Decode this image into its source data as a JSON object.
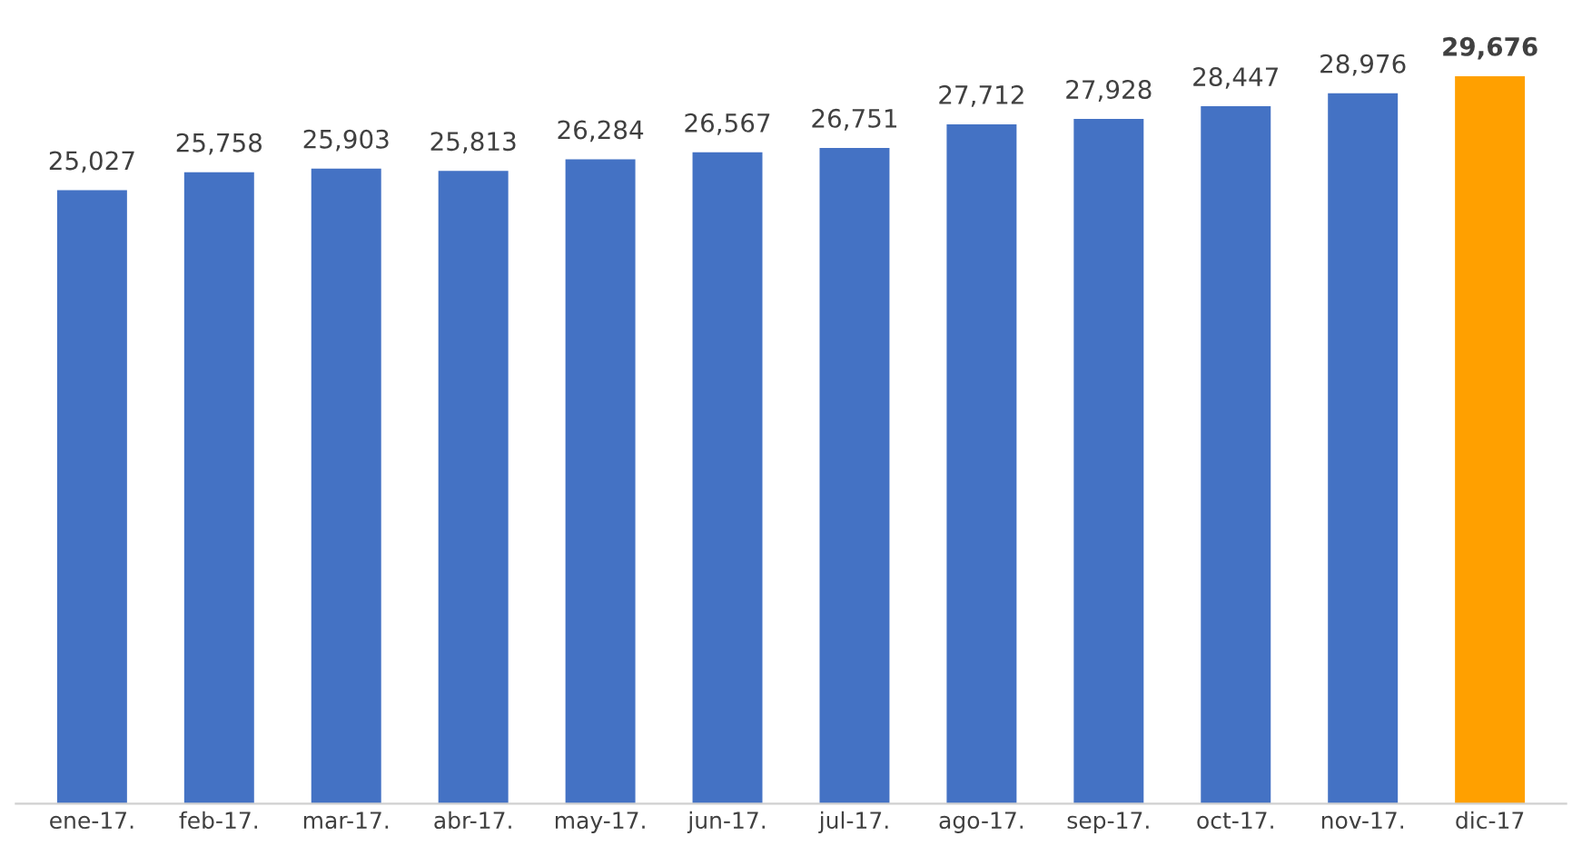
{
  "chart_data": {
    "type": "bar",
    "categories": [
      "ene-17.",
      "feb-17.",
      "mar-17.",
      "abr-17.",
      "may-17.",
      "jun-17.",
      "jul-17.",
      "ago-17.",
      "sep-17.",
      "oct-17.",
      "nov-17.",
      "dic-17"
    ],
    "values": [
      25027,
      25758,
      25903,
      25813,
      26284,
      26567,
      26751,
      27712,
      27928,
      28447,
      28976,
      29676
    ],
    "value_labels": [
      "25,027",
      "25,758",
      "25,903",
      "25,813",
      "26,284",
      "26,567",
      "26,751",
      "27,712",
      "27,928",
      "28,447",
      "28,976",
      "29,676"
    ],
    "colors": [
      "#4472c4",
      "#4472c4",
      "#4472c4",
      "#4472c4",
      "#4472c4",
      "#4472c4",
      "#4472c4",
      "#4472c4",
      "#4472c4",
      "#4472c4",
      "#4472c4",
      "#ffa000"
    ],
    "tick_labels": "x",
    "grid": false,
    "legend": false
  }
}
